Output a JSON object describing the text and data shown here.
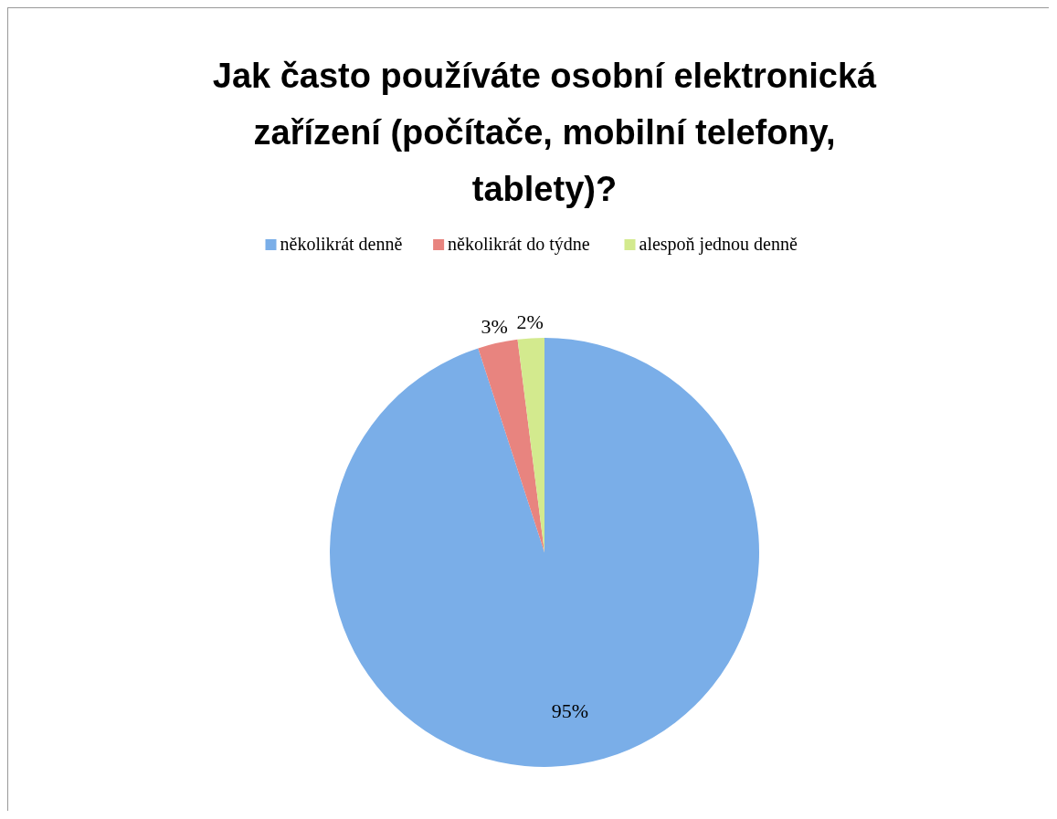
{
  "chart_data": {
    "type": "pie",
    "title": "Jak často používáte osobní elektronická zařízení (počítače, mobilní telefony, tablety)?",
    "categories": [
      "několikrát denně",
      "několikrát do týdne",
      "alespoň jednou denně"
    ],
    "values": [
      95,
      3,
      2
    ],
    "colors": [
      "#7aaee8",
      "#e8847f",
      "#d3ea8e"
    ],
    "value_labels": [
      "95%",
      "3%",
      "2%"
    ],
    "legend": "top"
  }
}
